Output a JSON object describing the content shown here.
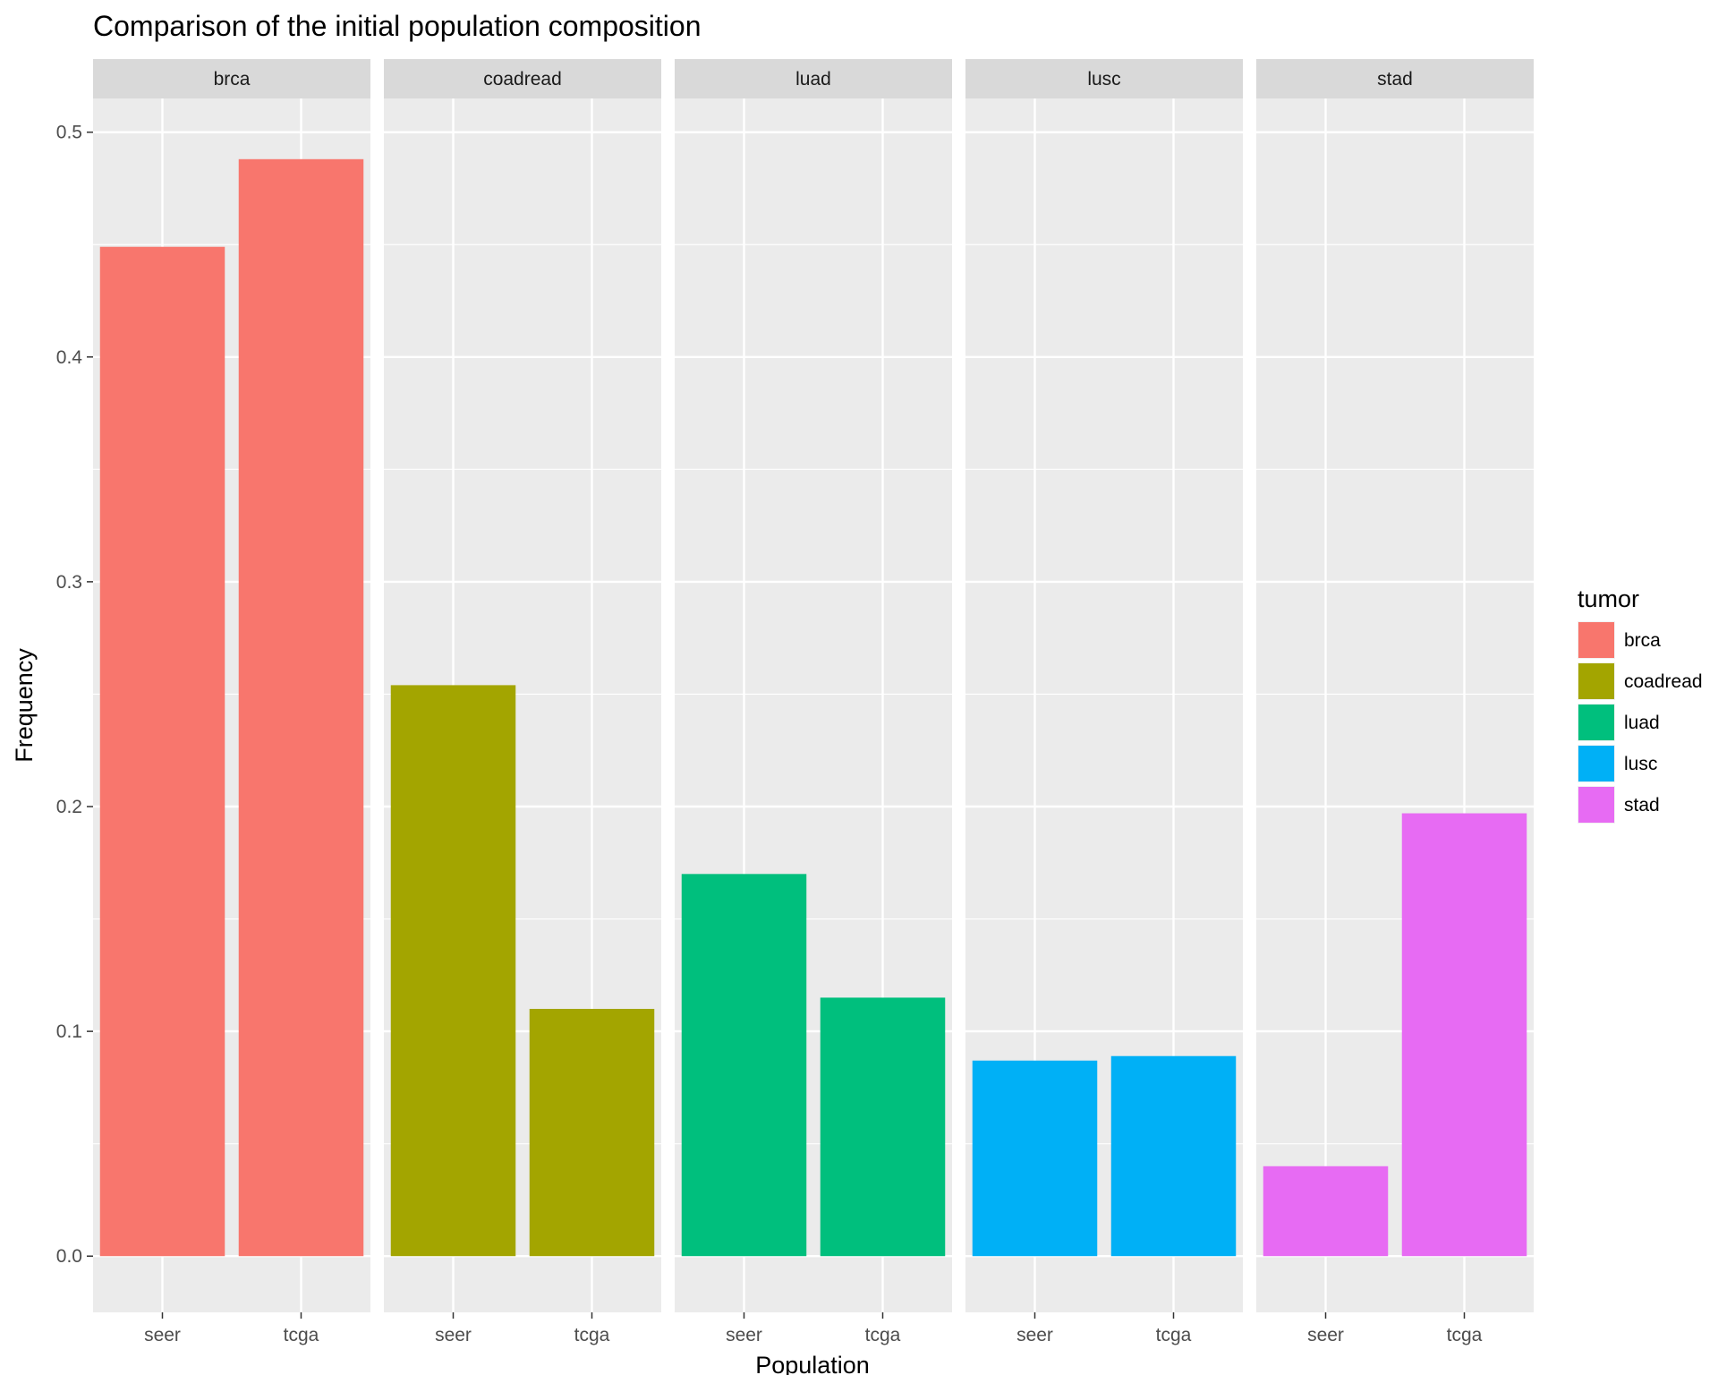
{
  "chart_data": {
    "type": "bar",
    "title": "Comparison of the initial population composition",
    "xlabel": "Population",
    "ylabel": "Frequency",
    "ylim": [
      -0.025,
      0.515
    ],
    "y_ticks": [
      0.0,
      0.1,
      0.2,
      0.3,
      0.4,
      0.5
    ],
    "y_tick_labels": [
      "0.0",
      "0.1",
      "0.2",
      "0.3",
      "0.4",
      "0.5"
    ],
    "categories": [
      "seer",
      "tcga"
    ],
    "grid": true,
    "legend_position": "right",
    "legend_title": "tumor",
    "facets": [
      {
        "name": "brca",
        "color": "#F8766D",
        "values": [
          0.449,
          0.488
        ]
      },
      {
        "name": "coadread",
        "color": "#A3A500",
        "values": [
          0.254,
          0.11
        ]
      },
      {
        "name": "luad",
        "color": "#00BF7D",
        "values": [
          0.17,
          0.115
        ]
      },
      {
        "name": "lusc",
        "color": "#00B0F6",
        "values": [
          0.087,
          0.089
        ]
      },
      {
        "name": "stad",
        "color": "#E76BF3",
        "values": [
          0.04,
          0.197
        ]
      }
    ]
  }
}
